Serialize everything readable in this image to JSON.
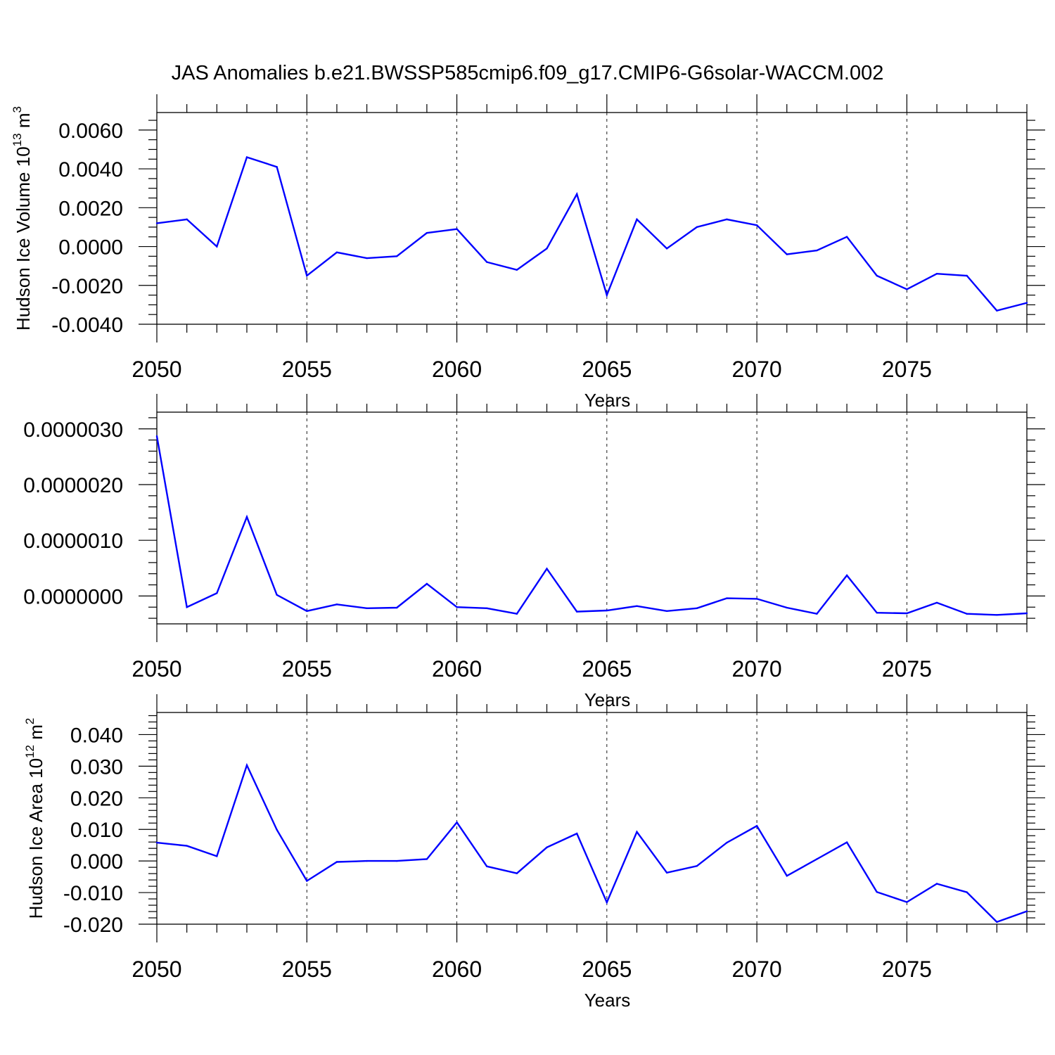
{
  "title": "JAS Anomalies b.e21.BWSSP585cmip6.f09_g17.CMIP6-G6solar-WACCM.002",
  "colors": {
    "line": "#0000ff",
    "axis": "#000000",
    "background": "#ffffff"
  },
  "chart_data": [
    {
      "type": "line",
      "title": "",
      "xlabel": "Years",
      "ylabel": "Hudson Ice Volume 10",
      "ylabel_exp": "13",
      "ylabel_unit": " m",
      "ylabel_unit_exp": "3",
      "xlim": [
        2050,
        2079
      ],
      "ylim": [
        -0.004,
        0.0069
      ],
      "xticks": [
        2050,
        2055,
        2060,
        2065,
        2070,
        2075
      ],
      "xtick_labels": [
        "2050",
        "2055",
        "2060",
        "2065",
        "2070",
        "2075"
      ],
      "yticks": [
        -0.004,
        -0.002,
        0.0,
        0.002,
        0.004,
        0.006
      ],
      "ytick_labels": [
        "-0.0040",
        "-0.0020",
        "0.0000",
        "0.0020",
        "0.0040",
        "0.0060"
      ],
      "y_minor_step": 0.0005,
      "grid": "vertical dashed at major x ticks",
      "x": [
        2050,
        2051,
        2052,
        2053,
        2054,
        2055,
        2056,
        2057,
        2058,
        2059,
        2060,
        2061,
        2062,
        2063,
        2064,
        2065,
        2066,
        2067,
        2068,
        2069,
        2070,
        2071,
        2072,
        2073,
        2074,
        2075,
        2076,
        2077,
        2078,
        2079
      ],
      "series": [
        {
          "values": [
            0.0012,
            0.0014,
            0.0,
            0.0046,
            0.0041,
            -0.0015,
            -0.0003,
            -0.0006,
            -0.0005,
            0.0007,
            0.0009,
            -0.0008,
            -0.0012,
            -0.0001,
            0.0027,
            -0.0025,
            0.0014,
            -0.0001,
            0.001,
            0.0014,
            0.0011,
            -0.0004,
            -0.0002,
            0.0005,
            -0.0015,
            -0.0022,
            -0.0014,
            -0.0015,
            -0.0033,
            -0.0029
          ]
        }
      ]
    },
    {
      "type": "line",
      "title": "",
      "xlabel": "Years",
      "ylabel": "",
      "xlim": [
        2050,
        2079
      ],
      "ylim": [
        -5e-07,
        3.3e-06
      ],
      "xticks": [
        2050,
        2055,
        2060,
        2065,
        2070,
        2075
      ],
      "xtick_labels": [
        "2050",
        "2055",
        "2060",
        "2065",
        "2070",
        "2075"
      ],
      "yticks": [
        0.0,
        1e-06,
        2e-06,
        3e-06
      ],
      "ytick_labels": [
        "0.0000000",
        "0.0000010",
        "0.0000020",
        "0.0000030"
      ],
      "y_minor_step": 2e-07,
      "grid": "vertical dashed at major x ticks",
      "x": [
        2050,
        2051,
        2052,
        2053,
        2054,
        2055,
        2056,
        2057,
        2058,
        2059,
        2060,
        2061,
        2062,
        2063,
        2064,
        2065,
        2066,
        2067,
        2068,
        2069,
        2070,
        2071,
        2072,
        2073,
        2074,
        2075,
        2076,
        2077,
        2078,
        2079
      ],
      "series": [
        {
          "values": [
            2.87e-06,
            -2e-07,
            5e-08,
            1.42e-06,
            2e-08,
            -2.7e-07,
            -1.5e-07,
            -2.2e-07,
            -2.1e-07,
            2.2e-07,
            -2e-07,
            -2.2e-07,
            -3.2e-07,
            4.9e-07,
            -2.8e-07,
            -2.6e-07,
            -1.8e-07,
            -2.7e-07,
            -2.2e-07,
            -4e-08,
            -5e-08,
            -2.1e-07,
            -3.2e-07,
            3.7e-07,
            -3e-07,
            -3.1e-07,
            -1.2e-07,
            -3.2e-07,
            -3.4e-07,
            -3.1e-07
          ]
        }
      ]
    },
    {
      "type": "line",
      "title": "",
      "xlabel": "Years",
      "ylabel": "Hudson Ice Area 10",
      "ylabel_exp": "12",
      "ylabel_unit": " m",
      "ylabel_unit_exp": "2",
      "xlim": [
        2050,
        2079
      ],
      "ylim": [
        -0.02,
        0.047
      ],
      "xticks": [
        2050,
        2055,
        2060,
        2065,
        2070,
        2075
      ],
      "xtick_labels": [
        "2050",
        "2055",
        "2060",
        "2065",
        "2070",
        "2075"
      ],
      "yticks": [
        -0.02,
        -0.01,
        0.0,
        0.01,
        0.02,
        0.03,
        0.04
      ],
      "ytick_labels": [
        "-0.020",
        "-0.010",
        "0.000",
        "0.010",
        "0.020",
        "0.030",
        "0.040"
      ],
      "y_minor_step": 0.002,
      "grid": "vertical dashed at major x ticks",
      "x": [
        2050,
        2051,
        2052,
        2053,
        2054,
        2055,
        2056,
        2057,
        2058,
        2059,
        2060,
        2061,
        2062,
        2063,
        2064,
        2065,
        2066,
        2067,
        2068,
        2069,
        2070,
        2071,
        2072,
        2073,
        2074,
        2075,
        2076,
        2077,
        2078,
        2079
      ],
      "series": [
        {
          "values": [
            0.0058,
            0.0048,
            0.0015,
            0.0303,
            0.0099,
            -0.0063,
            -0.0003,
            0.0,
            0.0,
            0.0006,
            0.0122,
            -0.0017,
            -0.0039,
            0.0043,
            0.0087,
            -0.0131,
            0.0092,
            -0.0037,
            -0.0016,
            0.0058,
            0.0111,
            -0.0047,
            0.0006,
            0.0059,
            -0.0098,
            -0.013,
            -0.0072,
            -0.0099,
            -0.0193,
            -0.0159
          ]
        }
      ]
    }
  ]
}
